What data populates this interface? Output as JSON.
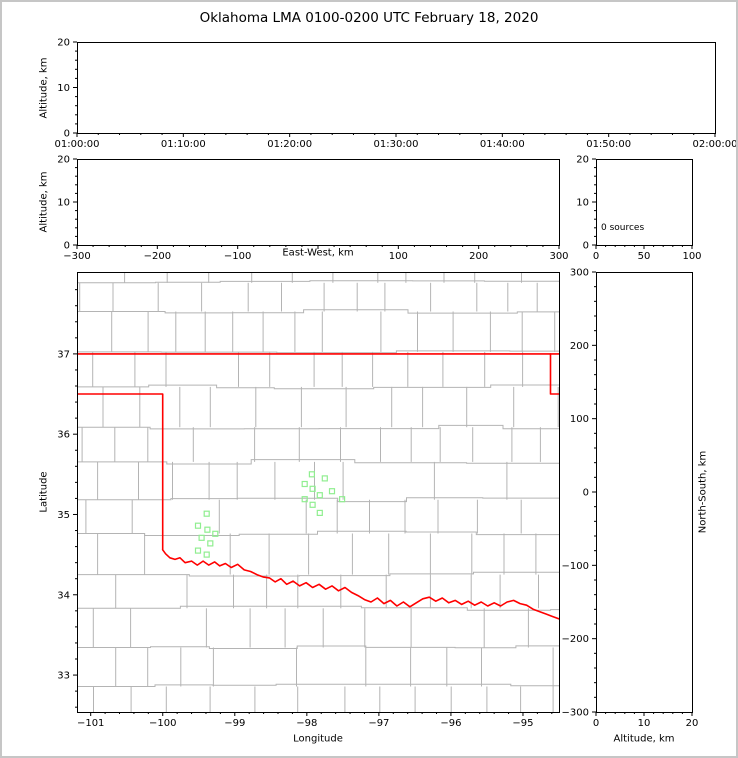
{
  "title": "Oklahoma LMA 0100-0200 UTC February 18, 2020",
  "colors": {
    "state_border": "#ff0000",
    "county_lines": "#b4b4b4",
    "stations": "#90ee90",
    "panel_border": "#000000",
    "background": "#ffffff",
    "frame": "#c6c6c6"
  },
  "chart_data": [
    {
      "id": "time-height",
      "type": "scatter",
      "xlabel": "",
      "ylabel": "Altitude, km",
      "xticks": [
        "01:00:00",
        "01:10:00",
        "01:20:00",
        "01:30:00",
        "01:40:00",
        "01:50:00",
        "02:00:00"
      ],
      "ylim": [
        0,
        20
      ],
      "yticks": [
        0,
        10,
        20
      ],
      "series": []
    },
    {
      "id": "ew-height",
      "type": "scatter",
      "xlabel": "East-West, km",
      "ylabel": "Altitude, km",
      "xlim": [
        -300,
        300
      ],
      "xticks": [
        -300,
        -200,
        -100,
        0,
        100,
        200,
        300
      ],
      "ylim": [
        0,
        20
      ],
      "yticks": [
        0,
        10,
        20
      ],
      "series": []
    },
    {
      "id": "source-histogram",
      "type": "line",
      "annotation": "0 sources",
      "xlim": [
        0,
        100
      ],
      "xticks": [
        0,
        50,
        100
      ],
      "ylim": [
        0,
        20
      ],
      "yticks": [
        0,
        10,
        20
      ],
      "series": []
    },
    {
      "id": "plan-view-map",
      "type": "scatter",
      "xlabel": "Longitude",
      "ylabel": "Latitude",
      "xlim": [
        -101.19,
        -94.5
      ],
      "xticks": [
        -101,
        -100,
        -99,
        -98,
        -97,
        -96,
        -95
      ],
      "ylim": [
        32.54,
        38.02
      ],
      "yticks": [
        33,
        34,
        35,
        36,
        37
      ],
      "stations_lon_lat": [
        [
          -99.39,
          35.01
        ],
        [
          -99.51,
          34.86
        ],
        [
          -99.38,
          34.81
        ],
        [
          -99.27,
          34.76
        ],
        [
          -99.46,
          34.71
        ],
        [
          -99.34,
          34.64
        ],
        [
          -99.51,
          34.55
        ],
        [
          -99.39,
          34.5
        ],
        [
          -97.93,
          35.5
        ],
        [
          -97.75,
          35.45
        ],
        [
          -98.03,
          35.38
        ],
        [
          -97.92,
          35.32
        ],
        [
          -97.65,
          35.29
        ],
        [
          -97.82,
          35.24
        ],
        [
          -98.03,
          35.19
        ],
        [
          -97.51,
          35.19
        ],
        [
          -97.92,
          35.12
        ],
        [
          -97.82,
          35.02
        ]
      ],
      "state_border_lon_lat": {
        "kansas_line": [
          [
            -101.19,
            37.0
          ],
          [
            -94.5,
            37.0
          ]
        ],
        "panhandle": [
          [
            -101.19,
            36.5
          ],
          [
            -100.0,
            36.5
          ],
          [
            -100.0,
            34.56
          ]
        ],
        "northeast_corner": [
          [
            -94.618,
            37.0
          ],
          [
            -94.618,
            36.5
          ],
          [
            -94.5,
            36.5
          ]
        ],
        "red_river": [
          [
            -100.0,
            34.56
          ],
          [
            -99.96,
            34.51
          ],
          [
            -99.9,
            34.46
          ],
          [
            -99.83,
            34.44
          ],
          [
            -99.76,
            34.46
          ],
          [
            -99.69,
            34.4
          ],
          [
            -99.6,
            34.42
          ],
          [
            -99.52,
            34.37
          ],
          [
            -99.44,
            34.42
          ],
          [
            -99.36,
            34.37
          ],
          [
            -99.28,
            34.41
          ],
          [
            -99.21,
            34.36
          ],
          [
            -99.13,
            34.39
          ],
          [
            -99.05,
            34.34
          ],
          [
            -98.96,
            34.38
          ],
          [
            -98.87,
            34.31
          ],
          [
            -98.78,
            34.29
          ],
          [
            -98.69,
            34.25
          ],
          [
            -98.6,
            34.22
          ],
          [
            -98.52,
            34.21
          ],
          [
            -98.44,
            34.16
          ],
          [
            -98.36,
            34.2
          ],
          [
            -98.28,
            34.13
          ],
          [
            -98.19,
            34.17
          ],
          [
            -98.1,
            34.11
          ],
          [
            -98.01,
            34.15
          ],
          [
            -97.92,
            34.09
          ],
          [
            -97.83,
            34.13
          ],
          [
            -97.74,
            34.07
          ],
          [
            -97.65,
            34.11
          ],
          [
            -97.56,
            34.05
          ],
          [
            -97.47,
            34.09
          ],
          [
            -97.38,
            34.03
          ],
          [
            -97.29,
            33.99
          ],
          [
            -97.2,
            33.94
          ],
          [
            -97.11,
            33.91
          ],
          [
            -97.02,
            33.96
          ],
          [
            -96.93,
            33.89
          ],
          [
            -96.84,
            33.93
          ],
          [
            -96.75,
            33.86
          ],
          [
            -96.66,
            33.91
          ],
          [
            -96.57,
            33.85
          ],
          [
            -96.48,
            33.9
          ],
          [
            -96.39,
            33.95
          ],
          [
            -96.3,
            33.97
          ],
          [
            -96.21,
            33.92
          ],
          [
            -96.12,
            33.96
          ],
          [
            -96.03,
            33.9
          ],
          [
            -95.94,
            33.93
          ],
          [
            -95.85,
            33.88
          ],
          [
            -95.76,
            33.92
          ],
          [
            -95.67,
            33.87
          ],
          [
            -95.58,
            33.91
          ],
          [
            -95.49,
            33.86
          ],
          [
            -95.4,
            33.9
          ],
          [
            -95.31,
            33.86
          ],
          [
            -95.22,
            33.91
          ],
          [
            -95.13,
            33.93
          ],
          [
            -95.04,
            33.89
          ],
          [
            -94.95,
            33.87
          ],
          [
            -94.86,
            33.82
          ],
          [
            -94.77,
            33.79
          ],
          [
            -94.68,
            33.76
          ],
          [
            -94.59,
            33.73
          ],
          [
            -94.5,
            33.7
          ]
        ]
      }
    },
    {
      "id": "ns-height",
      "type": "scatter",
      "xlabel": "Altitude, km",
      "ylabel": "North-South, km",
      "xlim": [
        0,
        20
      ],
      "xticks": [
        0,
        10,
        20
      ],
      "ylim": [
        -300,
        300
      ],
      "yticks": [
        -300,
        -200,
        -100,
        0,
        100,
        200,
        300
      ],
      "series": []
    }
  ]
}
